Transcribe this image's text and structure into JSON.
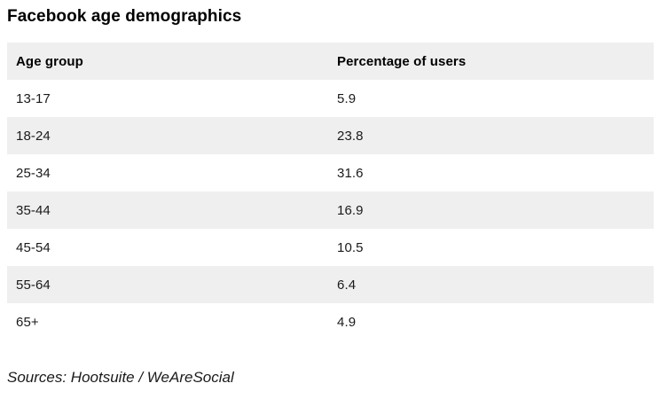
{
  "title": "Facebook age demographics",
  "table": {
    "columns": [
      "Age group",
      "Percentage of users"
    ],
    "rows": [
      [
        "13-17",
        "5.9"
      ],
      [
        "18-24",
        "23.8"
      ],
      [
        "25-34",
        "31.6"
      ],
      [
        "35-44",
        "16.9"
      ],
      [
        "45-54",
        "10.5"
      ],
      [
        "55-64",
        "6.4"
      ],
      [
        "65+",
        "4.9"
      ]
    ]
  },
  "footer": {
    "sources": "Sources: Hootsuite / WeAreSocial"
  },
  "colors": {
    "background": "#ffffff",
    "row_alt": "#efefef",
    "title_text": "#000000",
    "body_text": "#1a1a1a"
  },
  "chart_data": {
    "type": "table",
    "title": "Facebook age demographics",
    "columns": [
      "Age group",
      "Percentage of users"
    ],
    "categories": [
      "13-17",
      "18-24",
      "25-34",
      "35-44",
      "45-54",
      "55-64",
      "65+"
    ],
    "values": [
      5.9,
      23.8,
      31.6,
      16.9,
      10.5,
      6.4,
      4.9
    ],
    "source": "Sources: Hootsuite / WeAreSocial",
    "layout": {
      "zebra_striping": true,
      "header_background": "#efefef"
    }
  }
}
